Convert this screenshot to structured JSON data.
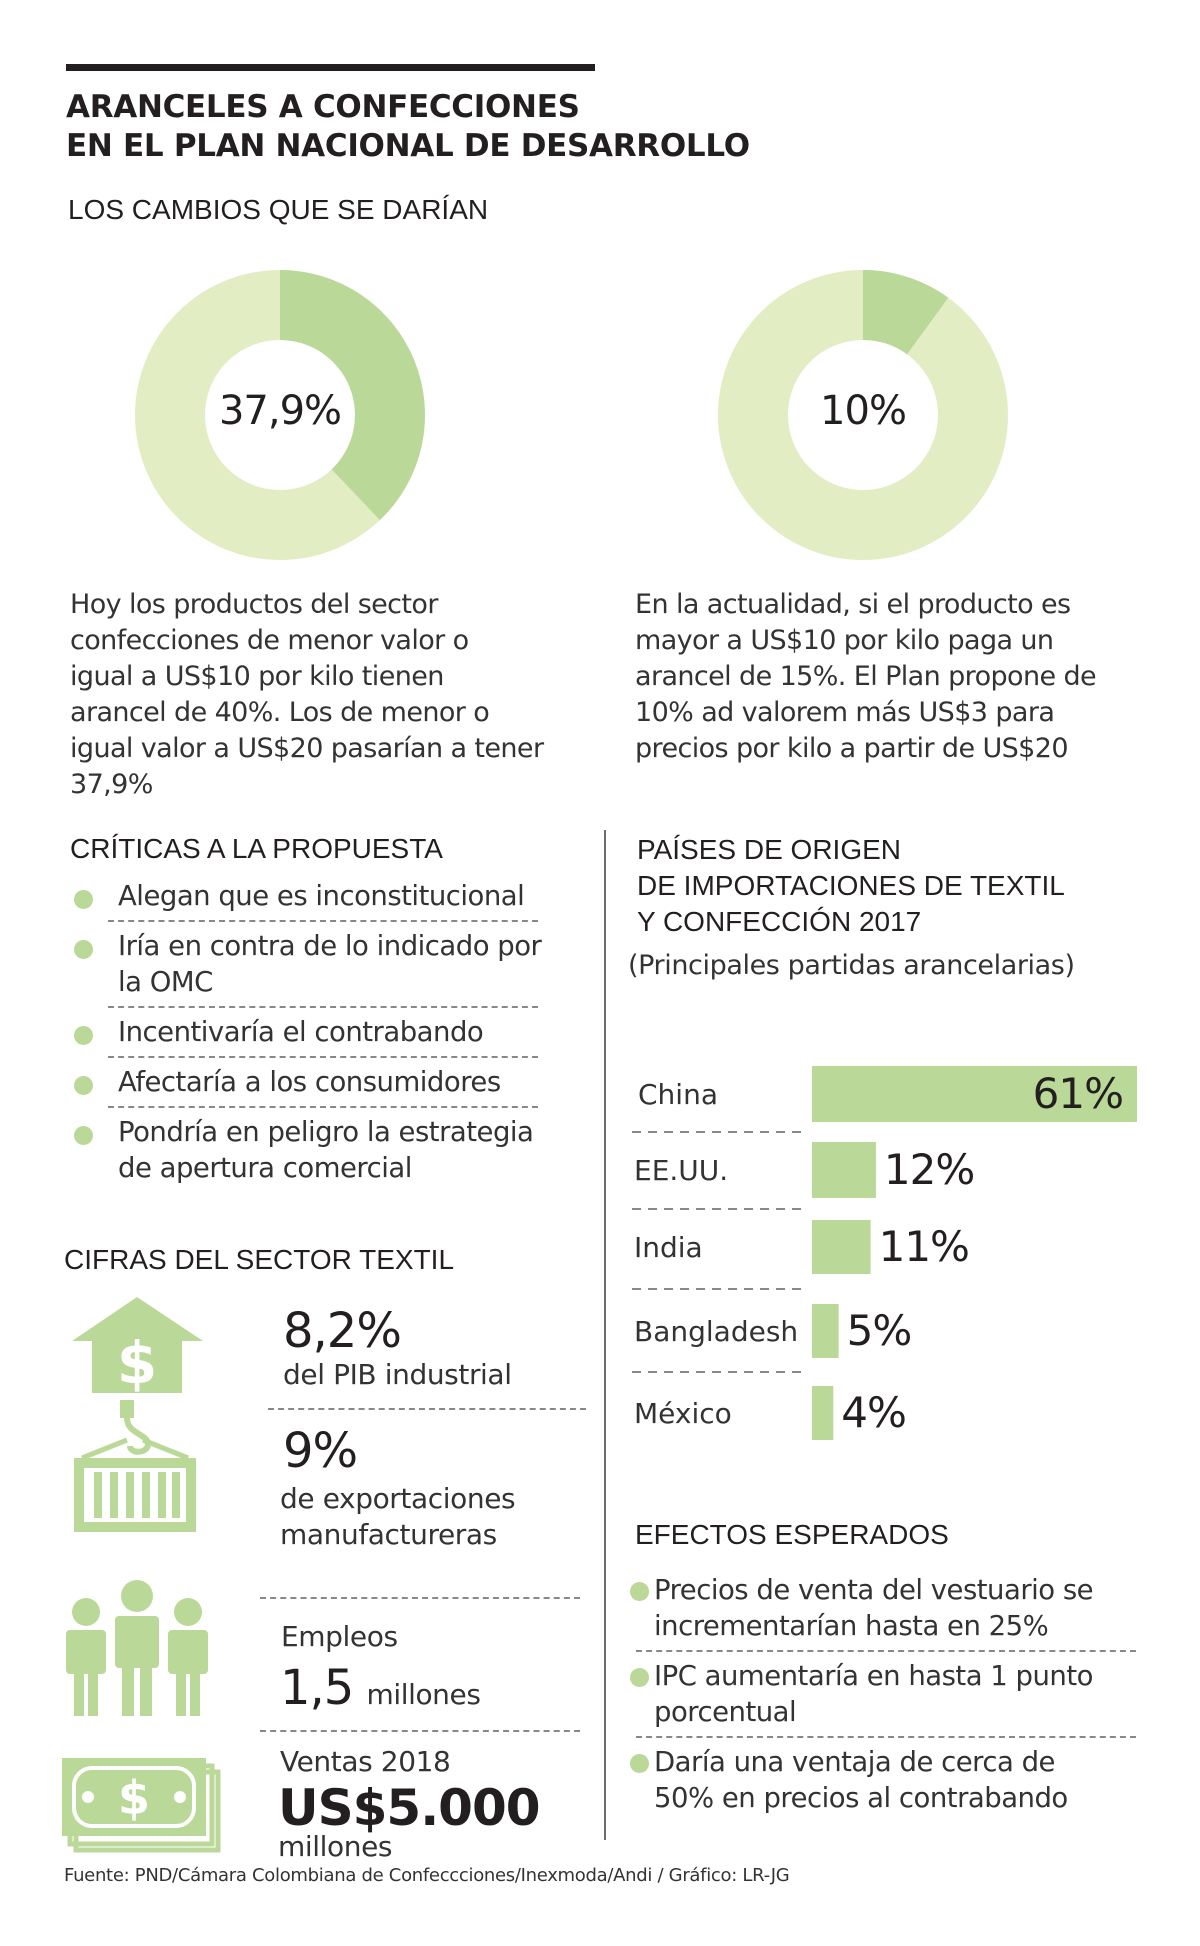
{
  "header": {
    "title_line1": "ARANCELES A CONFECCIONES",
    "title_line2": "EN EL PLAN NACIONAL DE DESARROLLO",
    "subtitle": "LOS CAMBIOS QUE SE DARÍAN"
  },
  "colors": {
    "light_green": "#e3edc4",
    "green": "#bad999",
    "text": "#231f20",
    "rule": "#6b6b6b"
  },
  "changes": [
    {
      "label": "37,9%",
      "value": 37.9,
      "text": [
        "Hoy los productos del sector",
        "confecciones de menor valor o",
        "igual a US$10 por kilo tienen",
        "arancel de 40%. Los de menor o",
        "igual valor a US$20 pasarían a tener",
        "37,9%"
      ]
    },
    {
      "label": "10%",
      "value": 10,
      "text": [
        "En la actualidad, si el producto es",
        "mayor a US$10 por kilo paga un",
        "arancel de 15%. El Plan propone de",
        "10% ad valorem más US$3 para",
        "precios por kilo a partir de US$20"
      ]
    }
  ],
  "criticas": {
    "title": "CRÍTICAS A LA PROPUESTA",
    "items": [
      [
        "Alegan que es inconstitucional"
      ],
      [
        "Iría en contra de lo indicado por",
        "la OMC"
      ],
      [
        "Incentivaría el contrabando"
      ],
      [
        "Afectaría a los consumidores"
      ],
      [
        "Pondría en peligro la estrategia",
        "de apertura comercial"
      ]
    ]
  },
  "cifras": {
    "title": "CIFRAS DEL SECTOR TEXTIL",
    "pib_value": "8,2%",
    "pib_label": "del PIB industrial",
    "export_value": "9%",
    "export_label1": "de exportaciones",
    "export_label2": "manufactureras",
    "empleos_label": "Empleos",
    "empleos_value": "1,5",
    "empleos_unit": "millones",
    "ventas_label": "Ventas 2018",
    "ventas_value": "US$5.000",
    "ventas_unit": "millones"
  },
  "paises": {
    "title1": "PAÍSES DE ORIGEN",
    "title2": "DE IMPORTACIONES DE TEXTIL",
    "title3": "Y CONFECCIÓN 2017",
    "subtitle": "(Principales partidas arancelarias)"
  },
  "chart_data": {
    "type": "bar",
    "orientation": "horizontal",
    "title": "PAÍSES DE ORIGEN DE IMPORTACIONES DE TEXTIL Y CONFECCIÓN 2017",
    "subtitle": "(Principales partidas arancelarias)",
    "categories": [
      "China",
      "EE.UU.",
      "India",
      "Bangladesh",
      "México"
    ],
    "values": [
      61,
      12,
      11,
      5,
      4
    ],
    "labels": [
      "61%",
      "12%",
      "11%",
      "5%",
      "4%"
    ],
    "unit": "%",
    "xlim": [
      0,
      61
    ]
  },
  "efectos": {
    "title": "EFECTOS ESPERADOS",
    "items": [
      [
        "Precios de venta del vestuario se",
        "incrementarían hasta en 25%"
      ],
      [
        "IPC aumentaría en hasta 1 punto",
        "porcentual"
      ],
      [
        "Daría una ventaja de cerca de",
        "50% en precios al contrabando"
      ]
    ]
  },
  "source": "Fuente: PND/Cámara Colombiana de Confeccciones/Inexmoda/Andi / Gráfico: LR-JG"
}
